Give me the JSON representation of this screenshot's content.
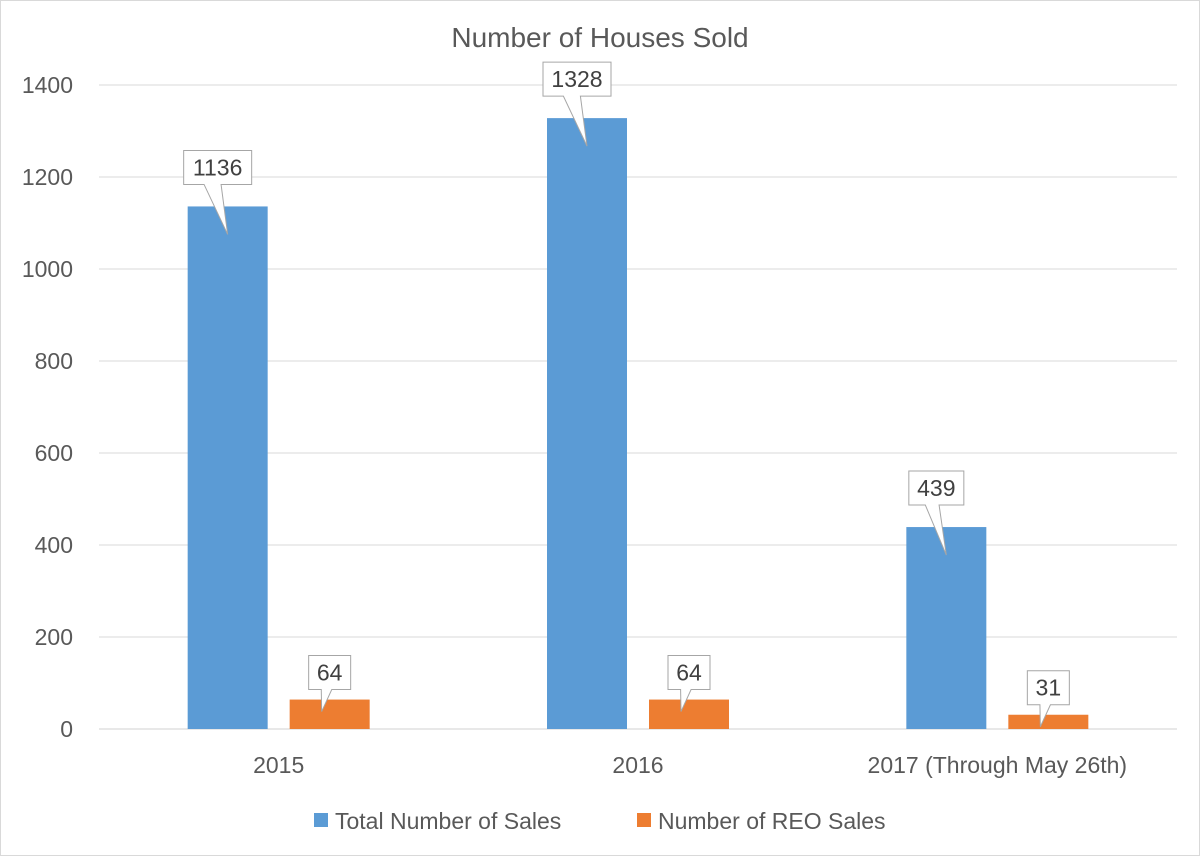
{
  "chart_data": {
    "type": "bar",
    "title": "Number of Houses Sold",
    "categories": [
      "2015",
      "2016",
      "2017 (Through May 26th)"
    ],
    "series": [
      {
        "name": "Total Number of Sales",
        "values": [
          1136,
          1328,
          439
        ],
        "color": "#5b9bd5"
      },
      {
        "name": "Number of REO Sales",
        "values": [
          64,
          64,
          31
        ],
        "color": "#ed7d31"
      }
    ],
    "yticks": [
      "0",
      "200",
      "400",
      "600",
      "800",
      "1000",
      "1200",
      "1400"
    ],
    "ylim": [
      0,
      1400
    ],
    "grid": true,
    "legend_position": "bottom",
    "data_labels": true
  }
}
